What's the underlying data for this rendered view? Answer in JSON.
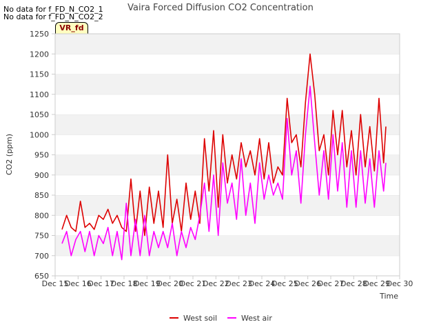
{
  "notes": [
    "No data for f_FD_N_CO2_1",
    "No data for f_FD_N_CO2_2"
  ],
  "badge": "VR_fd",
  "chart_data": {
    "type": "line",
    "title": "Vaira Forced Diffusion CO2 Concentration",
    "xlabel": "Time",
    "ylabel": "CO2 (ppm)",
    "xlim": [
      15,
      30
    ],
    "ylim": [
      650,
      1250
    ],
    "xticks": [
      15,
      16,
      17,
      18,
      19,
      20,
      21,
      22,
      23,
      24,
      25,
      26,
      27,
      28,
      29,
      30
    ],
    "xticklabels": [
      "Dec 15",
      "Dec 16",
      "Dec 17",
      "Dec 18",
      "Dec 19",
      "Dec 20",
      "Dec 21",
      "Dec 22",
      "Dec 23",
      "Dec 24",
      "Dec 25",
      "Dec 26",
      "Dec 27",
      "Dec 28",
      "Dec 29",
      "Dec 30"
    ],
    "yticks": [
      650,
      700,
      750,
      800,
      850,
      900,
      950,
      1000,
      1050,
      1100,
      1150,
      1200,
      1250
    ],
    "grid": "horizontal bands",
    "legend": "bottom-center",
    "colors": {
      "West soil": "#dd0000",
      "West air": "#ff00ff"
    },
    "x": [
      15.3,
      15.5,
      15.7,
      15.9,
      16.1,
      16.3,
      16.5,
      16.7,
      16.9,
      17.1,
      17.3,
      17.5,
      17.7,
      17.9,
      18.1,
      18.3,
      18.5,
      18.7,
      18.9,
      19.1,
      19.3,
      19.5,
      19.7,
      19.9,
      20.1,
      20.3,
      20.5,
      20.7,
      20.9,
      21.1,
      21.3,
      21.5,
      21.7,
      21.9,
      22.1,
      22.3,
      22.5,
      22.7,
      22.9,
      23.1,
      23.3,
      23.5,
      23.7,
      23.9,
      24.1,
      24.3,
      24.5,
      24.7,
      24.9,
      25.1,
      25.3,
      25.5,
      25.7,
      25.9,
      26.1,
      26.3,
      26.5,
      26.7,
      26.9,
      27.1,
      27.3,
      27.5,
      27.7,
      27.9,
      28.1,
      28.3,
      28.5,
      28.7,
      28.9,
      29.1,
      29.3,
      29.4
    ],
    "series": [
      {
        "name": "West soil",
        "values": [
          765,
          800,
          770,
          760,
          835,
          770,
          780,
          765,
          800,
          790,
          815,
          780,
          800,
          770,
          760,
          890,
          760,
          860,
          750,
          870,
          780,
          860,
          770,
          950,
          780,
          840,
          760,
          880,
          790,
          860,
          780,
          990,
          860,
          1010,
          820,
          1000,
          880,
          950,
          890,
          980,
          920,
          960,
          900,
          990,
          890,
          980,
          880,
          920,
          900,
          1090,
          980,
          1000,
          920,
          1080,
          1200,
          1100,
          960,
          1000,
          900,
          1060,
          950,
          1060,
          920,
          1010,
          900,
          1050,
          920,
          1020,
          910,
          1090,
          930,
          1020
        ]
      },
      {
        "name": "West air",
        "values": [
          730,
          760,
          700,
          740,
          760,
          710,
          760,
          700,
          750,
          730,
          770,
          700,
          760,
          690,
          830,
          700,
          790,
          700,
          800,
          700,
          760,
          720,
          760,
          720,
          780,
          700,
          760,
          720,
          770,
          740,
          800,
          880,
          760,
          900,
          750,
          930,
          830,
          880,
          790,
          940,
          800,
          880,
          780,
          930,
          840,
          900,
          850,
          880,
          840,
          1040,
          900,
          960,
          830,
          1000,
          1120,
          980,
          850,
          960,
          840,
          1000,
          860,
          980,
          820,
          960,
          820,
          960,
          830,
          940,
          820,
          960,
          860,
          930
        ]
      }
    ]
  },
  "legend": {
    "items": [
      "West soil",
      "West air"
    ]
  }
}
